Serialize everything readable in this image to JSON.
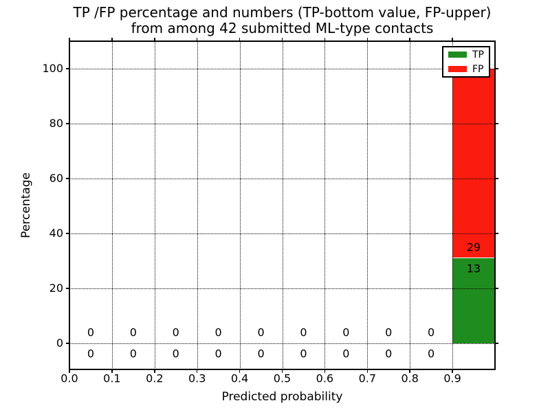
{
  "figure": {
    "title_line1": "TP /FP percentage and numbers (TP-bottom value, FP-upper)",
    "title_line2": "from among 42 submitted ML-type contacts"
  },
  "chart_data": {
    "type": "bar",
    "stacked": true,
    "title": "TP /FP percentage and numbers (TP-bottom value, FP-upper)\nfrom among 42 submitted ML-type contacts",
    "xlabel": "Predicted probability",
    "ylabel": "Percentage",
    "total_contacts": 42,
    "xlim": [
      0.0,
      1.0
    ],
    "ylim": [
      -10,
      110
    ],
    "grid": "dotted",
    "legend_position": "upper right",
    "x_tick_labels": [
      "0.0",
      "0.1",
      "0.2",
      "0.3",
      "0.4",
      "0.5",
      "0.6",
      "0.7",
      "0.8",
      "0.9"
    ],
    "x_tick_values": [
      0.0,
      0.1,
      0.2,
      0.3,
      0.4,
      0.5,
      0.6,
      0.7,
      0.8,
      0.9
    ],
    "y_tick_labels": [
      "0",
      "20",
      "40",
      "60",
      "80",
      "100"
    ],
    "y_tick_values": [
      0,
      20,
      40,
      60,
      80,
      100
    ],
    "bin_width": 0.1,
    "bin_centers": [
      0.05,
      0.15,
      0.25,
      0.35,
      0.45,
      0.55,
      0.65,
      0.75,
      0.85,
      0.95
    ],
    "series": [
      {
        "name": "TP",
        "color": "#1f8c1f",
        "counts": [
          0,
          0,
          0,
          0,
          0,
          0,
          0,
          0,
          0,
          13
        ],
        "percentages": [
          0,
          0,
          0,
          0,
          0,
          0,
          0,
          0,
          0,
          30.95
        ]
      },
      {
        "name": "FP",
        "color": "#fb1c10",
        "counts": [
          0,
          0,
          0,
          0,
          0,
          0,
          0,
          0,
          0,
          29
        ],
        "percentages": [
          0,
          0,
          0,
          0,
          0,
          0,
          0,
          0,
          0,
          69.05
        ]
      }
    ],
    "legend": [
      {
        "label": "TP",
        "color": "#1f8c1f"
      },
      {
        "label": "FP",
        "color": "#fb1c10"
      }
    ]
  }
}
